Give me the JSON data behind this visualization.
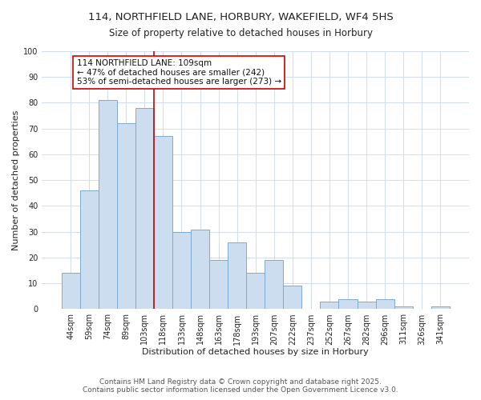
{
  "title": "114, NORTHFIELD LANE, HORBURY, WAKEFIELD, WF4 5HS",
  "subtitle": "Size of property relative to detached houses in Horbury",
  "xlabel": "Distribution of detached houses by size in Horbury",
  "ylabel": "Number of detached properties",
  "bar_color": "#cdddf0",
  "bar_edge_color": "#7aabd4",
  "background_color": "#ffffff",
  "grid_color": "#c8d8ec",
  "categories": [
    "44sqm",
    "59sqm",
    "74sqm",
    "89sqm",
    "103sqm",
    "118sqm",
    "133sqm",
    "148sqm",
    "163sqm",
    "178sqm",
    "193sqm",
    "207sqm",
    "222sqm",
    "237sqm",
    "252sqm",
    "267sqm",
    "282sqm",
    "296sqm",
    "311sqm",
    "326sqm",
    "341sqm"
  ],
  "values": [
    14,
    46,
    81,
    72,
    78,
    67,
    30,
    31,
    19,
    26,
    14,
    19,
    9,
    0,
    3,
    4,
    3,
    4,
    1,
    0,
    1
  ],
  "ref_line_x": 4.5,
  "ref_line_color": "#cc0000",
  "annotation_text": "114 NORTHFIELD LANE: 109sqm\n← 47% of detached houses are smaller (242)\n53% of semi-detached houses are larger (273) →",
  "annotation_box_color": "#ffffff",
  "annotation_box_edge_color": "#cc0000",
  "ylim": [
    0,
    100
  ],
  "yticks": [
    0,
    10,
    20,
    30,
    40,
    50,
    60,
    70,
    80,
    90,
    100
  ],
  "footer1": "Contains HM Land Registry data © Crown copyright and database right 2025.",
  "footer2": "Contains public sector information licensed under the Open Government Licence v3.0.",
  "title_fontsize": 9.5,
  "subtitle_fontsize": 8.5,
  "axis_label_fontsize": 8,
  "tick_fontsize": 7,
  "annotation_fontsize": 7.5,
  "footer_fontsize": 6.5
}
